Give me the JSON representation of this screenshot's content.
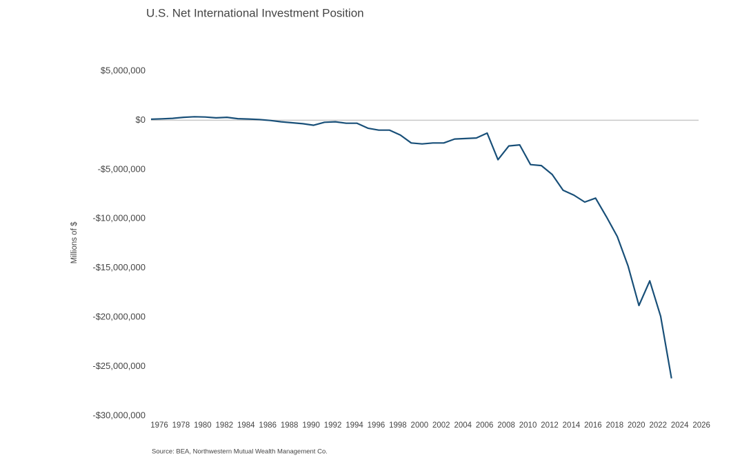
{
  "chart_data": {
    "type": "line",
    "title": "U.S. Net International Investment Position",
    "y_label": "Millions of $",
    "source": "Source: BEA, Northwestern Mutual Wealth Management Co.",
    "x": [
      1976,
      1977,
      1978,
      1979,
      1980,
      1981,
      1982,
      1983,
      1984,
      1985,
      1986,
      1987,
      1988,
      1989,
      1990,
      1991,
      1992,
      1993,
      1994,
      1995,
      1996,
      1997,
      1998,
      1999,
      2000,
      2001,
      2002,
      2003,
      2004,
      2005,
      2006,
      2007,
      2008,
      2009,
      2010,
      2011,
      2012,
      2013,
      2014,
      2015,
      2016,
      2017,
      2018,
      2019,
      2020,
      2021,
      2022,
      2023,
      2024
    ],
    "series": [
      {
        "name": "U.S. Net International Investment Position",
        "color": "#184f78",
        "values": [
          110000,
          150000,
          200000,
          300000,
          360000,
          330000,
          250000,
          300000,
          160000,
          130000,
          80000,
          -20000,
          -150000,
          -250000,
          -350000,
          -500000,
          -200000,
          -150000,
          -300000,
          -300000,
          -800000,
          -1000000,
          -1000000,
          -1500000,
          -2300000,
          -2400000,
          -2300000,
          -2300000,
          -1900000,
          -1850000,
          -1800000,
          -1300000,
          -4000000,
          -2600000,
          -2500000,
          -4500000,
          -4600000,
          -5500000,
          -7100000,
          -7600000,
          -8300000,
          -7900000,
          -9800000,
          -11800000,
          -14800000,
          -18800000,
          -16300000,
          -19900000,
          -26200000
        ]
      }
    ],
    "xlim": [
      1976,
      2026.5
    ],
    "xticks": [
      1976,
      1978,
      1980,
      1982,
      1984,
      1986,
      1988,
      1990,
      1992,
      1994,
      1996,
      1998,
      2000,
      2002,
      2004,
      2006,
      2008,
      2010,
      2012,
      2014,
      2016,
      2018,
      2020,
      2022,
      2024,
      2026
    ],
    "ylim": [
      -30000000,
      5000000
    ],
    "yticks": [
      {
        "value": 5000000,
        "label": "$5,000,000"
      },
      {
        "value": 0,
        "label": "$0"
      },
      {
        "value": -5000000,
        "label": "-$5,000,000"
      },
      {
        "value": -10000000,
        "label": "-$10,000,000"
      },
      {
        "value": -15000000,
        "label": "-$15,000,000"
      },
      {
        "value": -20000000,
        "label": "-$20,000,000"
      },
      {
        "value": -25000000,
        "label": "-$25,000,000"
      },
      {
        "value": -30000000,
        "label": "-$30,000,000"
      }
    ]
  }
}
